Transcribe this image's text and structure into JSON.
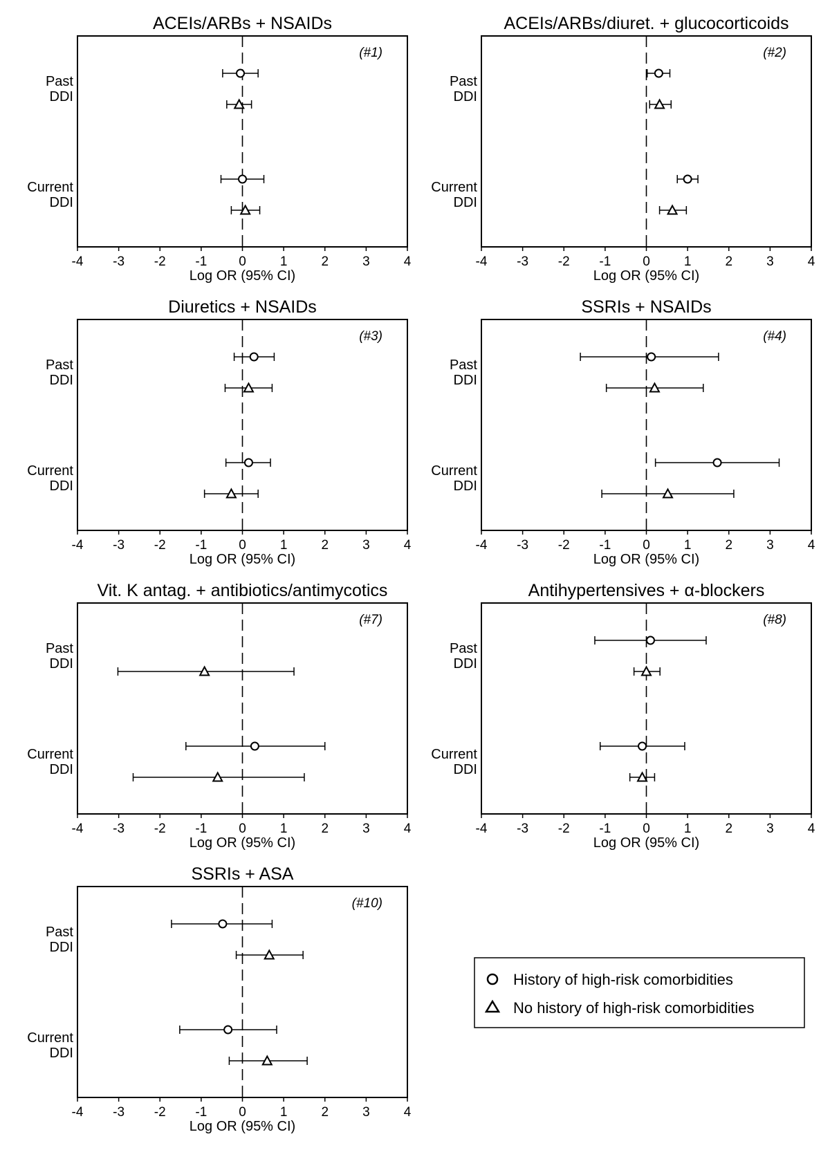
{
  "panels": [
    {
      "title": "ACEIs/ARBs + NSAIDs",
      "id_label": "(#1)",
      "xlabel": "Log OR (95% CI)",
      "xlim": [
        -4,
        4
      ],
      "xticks": [
        "-4",
        "-3",
        "-2",
        "-1",
        "0",
        "1",
        "2",
        "3",
        "4"
      ],
      "rows": [
        {
          "label": [
            "Past",
            "DDI"
          ],
          "history": {
            "est": -0.05,
            "lo": -0.48,
            "hi": 0.38
          },
          "no_history": {
            "est": -0.08,
            "lo": -0.38,
            "hi": 0.22
          }
        },
        {
          "label": [
            "Current",
            "DDI"
          ],
          "history": {
            "est": 0.0,
            "lo": -0.52,
            "hi": 0.52
          },
          "no_history": {
            "est": 0.07,
            "lo": -0.27,
            "hi": 0.42
          }
        }
      ]
    },
    {
      "title": "ACEIs/ARBs/diuret. + glucocorticoids",
      "id_label": "(#2)",
      "xlabel": "Log OR (95% CI)",
      "xlim": [
        -4,
        4
      ],
      "xticks": [
        "-4",
        "-3",
        "-2",
        "-1",
        "0",
        "1",
        "2",
        "3",
        "4"
      ],
      "rows": [
        {
          "label": [
            "Past",
            "DDI"
          ],
          "history": {
            "est": 0.3,
            "lo": 0.02,
            "hi": 0.57
          },
          "no_history": {
            "est": 0.32,
            "lo": 0.08,
            "hi": 0.6
          }
        },
        {
          "label": [
            "Current",
            "DDI"
          ],
          "history": {
            "est": 1.0,
            "lo": 0.75,
            "hi": 1.25
          },
          "no_history": {
            "est": 0.63,
            "lo": 0.32,
            "hi": 0.97
          }
        }
      ]
    },
    {
      "title": "Diuretics + NSAIDs",
      "id_label": "(#3)",
      "xlabel": "Log OR (95% CI)",
      "xlim": [
        -4,
        4
      ],
      "xticks": [
        "-4",
        "-3",
        "-2",
        "-1",
        "0",
        "1",
        "2",
        "3",
        "4"
      ],
      "rows": [
        {
          "label": [
            "Past",
            "DDI"
          ],
          "history": {
            "est": 0.28,
            "lo": -0.2,
            "hi": 0.77
          },
          "no_history": {
            "est": 0.15,
            "lo": -0.42,
            "hi": 0.72
          }
        },
        {
          "label": [
            "Current",
            "DDI"
          ],
          "history": {
            "est": 0.15,
            "lo": -0.4,
            "hi": 0.68
          },
          "no_history": {
            "est": -0.27,
            "lo": -0.92,
            "hi": 0.38
          }
        }
      ]
    },
    {
      "title": "SSRIs + NSAIDs",
      "id_label": "(#4)",
      "xlabel": "Log OR (95% CI)",
      "xlim": [
        -4,
        4
      ],
      "xticks": [
        "-4",
        "-3",
        "-2",
        "-1",
        "0",
        "1",
        "2",
        "3",
        "4"
      ],
      "rows": [
        {
          "label": [
            "Past",
            "DDI"
          ],
          "history": {
            "est": 0.12,
            "lo": -1.6,
            "hi": 1.75
          },
          "no_history": {
            "est": 0.2,
            "lo": -0.97,
            "hi": 1.38
          }
        },
        {
          "label": [
            "Current",
            "DDI"
          ],
          "history": {
            "est": 1.72,
            "lo": 0.22,
            "hi": 3.22
          },
          "no_history": {
            "est": 0.52,
            "lo": -1.08,
            "hi": 2.12
          }
        }
      ]
    },
    {
      "title": "Vit. K antag. + antibiotics/antimycotics",
      "id_label": "(#7)",
      "xlabel": "Log OR (95% CI)",
      "xlim": [
        -4,
        4
      ],
      "xticks": [
        "-4",
        "-3",
        "-2",
        "-1",
        "0",
        "1",
        "2",
        "3",
        "4"
      ],
      "rows": [
        {
          "label": [
            "Past",
            "DDI"
          ],
          "history": null,
          "no_history": {
            "est": -0.92,
            "lo": -3.02,
            "hi": 1.25
          }
        },
        {
          "label": [
            "Current",
            "DDI"
          ],
          "history": {
            "est": 0.3,
            "lo": -1.37,
            "hi": 2.0
          },
          "no_history": {
            "est": -0.6,
            "lo": -2.65,
            "hi": 1.5
          }
        }
      ]
    },
    {
      "title": "Antihypertensives + α-blockers",
      "id_label": "(#8)",
      "xlabel": "Log OR (95% CI)",
      "xlim": [
        -4,
        4
      ],
      "xticks": [
        "-4",
        "-3",
        "-2",
        "-1",
        "0",
        "1",
        "2",
        "3",
        "4"
      ],
      "rows": [
        {
          "label": [
            "Past",
            "DDI"
          ],
          "history": {
            "est": 0.1,
            "lo": -1.25,
            "hi": 1.45
          },
          "no_history": {
            "est": 0.0,
            "lo": -0.3,
            "hi": 0.33
          }
        },
        {
          "label": [
            "Current",
            "DDI"
          ],
          "history": {
            "est": -0.1,
            "lo": -1.12,
            "hi": 0.93
          },
          "no_history": {
            "est": -0.1,
            "lo": -0.4,
            "hi": 0.2
          }
        }
      ]
    },
    {
      "title": "SSRIs + ASA",
      "id_label": "(#10)",
      "xlabel": "Log OR (95% CI)",
      "xlim": [
        -4,
        4
      ],
      "xticks": [
        "-4",
        "-3",
        "-2",
        "-1",
        "0",
        "1",
        "2",
        "3",
        "4"
      ],
      "rows": [
        {
          "label": [
            "Past",
            "DDI"
          ],
          "history": {
            "est": -0.48,
            "lo": -1.72,
            "hi": 0.72
          },
          "no_history": {
            "est": 0.65,
            "lo": -0.15,
            "hi": 1.47
          }
        },
        {
          "label": [
            "Current",
            "DDI"
          ],
          "history": {
            "est": -0.35,
            "lo": -1.52,
            "hi": 0.83
          },
          "no_history": {
            "est": 0.6,
            "lo": -0.32,
            "hi": 1.57
          }
        }
      ]
    }
  ],
  "legend": {
    "history_label": "History of high-risk comorbidities",
    "no_history_label": "No history of high-risk comorbidities"
  },
  "chart_data": {
    "type": "forest",
    "xlabel": "Log OR (95% CI)",
    "xlim": [
      -4,
      4
    ],
    "reference_line": 0,
    "grid": false,
    "series": [
      {
        "name": "History of high-risk comorbidities",
        "marker": "circle"
      },
      {
        "name": "No history of high-risk comorbidities",
        "marker": "triangle"
      }
    ],
    "legend_position": "bottom-right"
  }
}
